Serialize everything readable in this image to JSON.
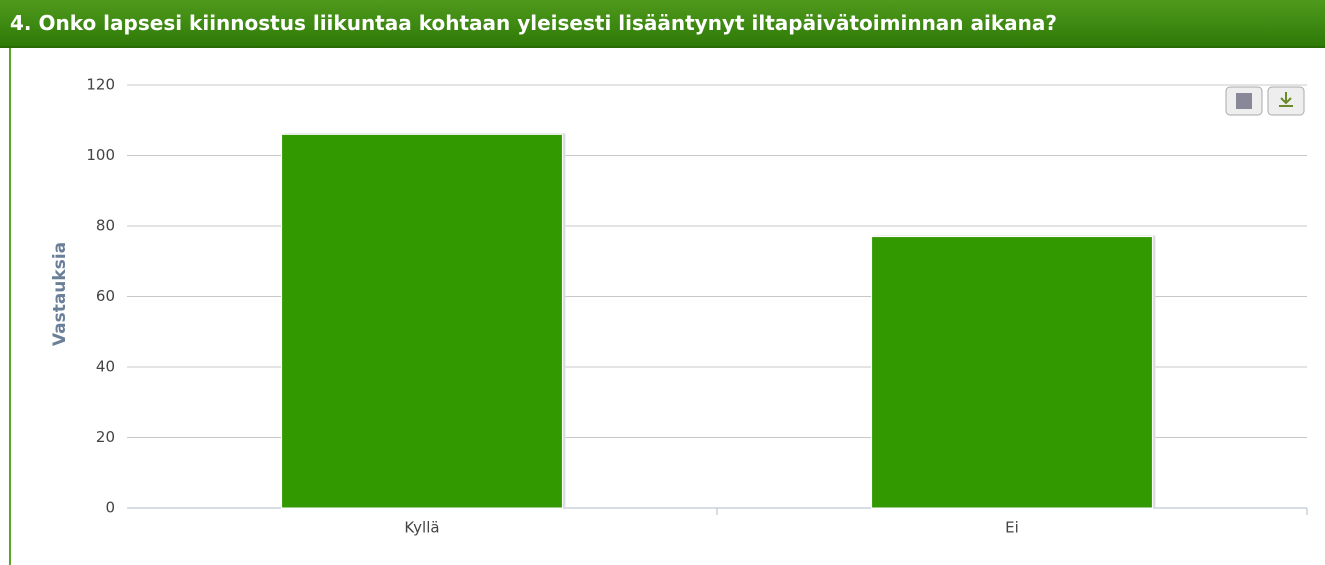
{
  "chart_data": {
    "type": "bar",
    "title": "4. Onko lapsesi kiinnostus liikuntaa kohtaan yleisesti lisääntynyt iltapäivätoiminnan aikana?",
    "y_label": "Vastauksia",
    "categories": [
      "Kyllä",
      "Ei"
    ],
    "values": [
      106,
      77
    ],
    "color": "#339900",
    "ylim": [
      0,
      120
    ],
    "yticks": [
      0,
      20,
      40,
      60,
      80,
      100,
      120
    ],
    "grid": true
  }
}
